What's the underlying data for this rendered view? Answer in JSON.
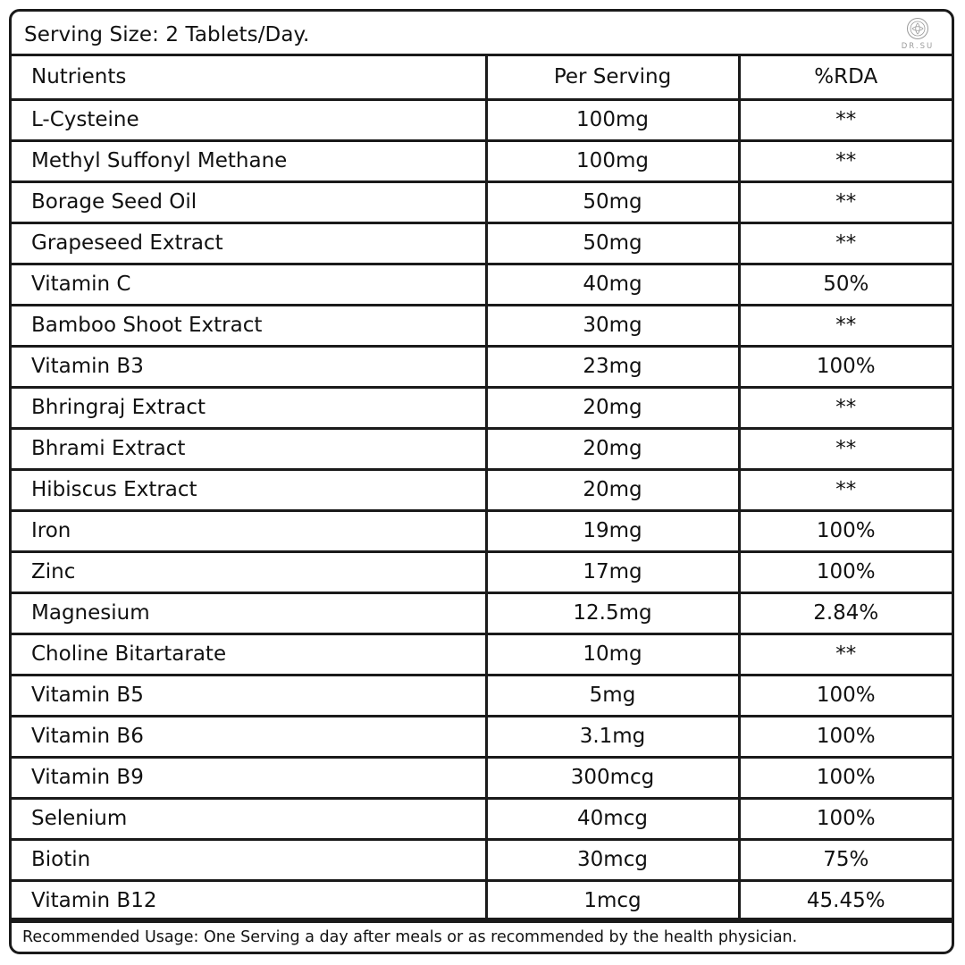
{
  "serving_size": "Serving Size: 2 Tablets/Day.",
  "logo": {
    "icon": "dr-su-emblem-icon",
    "text": "DR.SU"
  },
  "table": {
    "headers": [
      "Nutrients",
      "Per Serving",
      "%RDA"
    ],
    "rows": [
      [
        "L-Cysteine",
        "100mg",
        "**"
      ],
      [
        "Methyl Suffonyl Methane",
        "100mg",
        "**"
      ],
      [
        "Borage Seed Oil",
        "50mg",
        "**"
      ],
      [
        "Grapeseed Extract",
        "50mg",
        "**"
      ],
      [
        "Vitamin C",
        "40mg",
        "50%"
      ],
      [
        "Bamboo Shoot Extract",
        "30mg",
        "**"
      ],
      [
        "Vitamin B3",
        "23mg",
        "100%"
      ],
      [
        "Bhringraj Extract",
        "20mg",
        "**"
      ],
      [
        "Bhrami Extract",
        "20mg",
        "**"
      ],
      [
        "Hibiscus Extract",
        "20mg",
        "**"
      ],
      [
        "Iron",
        "19mg",
        "100%"
      ],
      [
        "Zinc",
        "17mg",
        "100%"
      ],
      [
        "Magnesium",
        "12.5mg",
        "2.84%"
      ],
      [
        "Choline Bitartarate",
        "10mg",
        "**"
      ],
      [
        "Vitamin B5",
        "5mg",
        "100%"
      ],
      [
        "Vitamin B6",
        "3.1mg",
        "100%"
      ],
      [
        "Vitamin B9",
        "300mcg",
        "100%"
      ],
      [
        "Selenium",
        "40mcg",
        "100%"
      ],
      [
        "Biotin",
        "30mcg",
        "75%"
      ],
      [
        "Vitamin B12",
        "1mcg",
        "45.45%"
      ]
    ]
  },
  "footer": "Recommended Usage: One Serving a day after meals or as recommended by the health physician.",
  "colors": {
    "border": "#1a1a1a",
    "text": "#111111",
    "logo": "#9a9a9a"
  }
}
